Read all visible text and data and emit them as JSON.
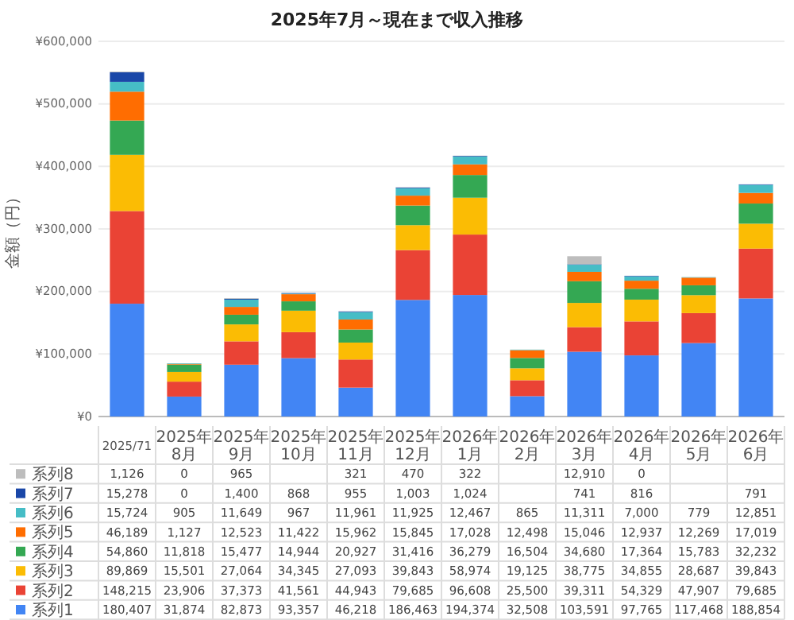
{
  "chart_data": {
    "type": "bar",
    "stacked": true,
    "title": "2025年7月～現在まで収入推移",
    "ylabel": "金額（円）",
    "categories": [
      "2025/71",
      "2025年8月",
      "2025年9月",
      "2025年10月",
      "2025年11月",
      "2025年12月",
      "2026年1月",
      "2026年2月",
      "2026年3月",
      "2026年4月",
      "2026年5月",
      "2026年6月"
    ],
    "series": [
      {
        "name": "系列1",
        "color": "#4285f4",
        "values": [
          180407,
          31874,
          82873,
          93357,
          46218,
          186463,
          194374,
          32508,
          103591,
          97765,
          117468,
          188854
        ],
        "value_labels": [
          "180,407",
          "31,874",
          "82,873",
          "93,357",
          "46,218",
          "186,463",
          "194,374",
          "32,508",
          "103,591",
          "97,765",
          "117,468",
          "188,854"
        ]
      },
      {
        "name": "系列2",
        "color": "#ea4335",
        "values": [
          148215,
          23906,
          37373,
          41561,
          44943,
          79685,
          96608,
          25500,
          39311,
          54329,
          47907,
          79685
        ],
        "value_labels": [
          "148,215",
          "23,906",
          "37,373",
          "41,561",
          "44,943",
          "79,685",
          "96,608",
          "25,500",
          "39,311",
          "54,329",
          "47,907",
          "79,685"
        ]
      },
      {
        "name": "系列3",
        "color": "#fbbc04",
        "values": [
          89869,
          15501,
          27064,
          34345,
          27093,
          39843,
          58974,
          19125,
          38775,
          34855,
          28687,
          39843
        ],
        "value_labels": [
          "89,869",
          "15,501",
          "27,064",
          "34,345",
          "27,093",
          "39,843",
          "58,974",
          "19,125",
          "38,775",
          "34,855",
          "28,687",
          "39,843"
        ]
      },
      {
        "name": "系列4",
        "color": "#34a853",
        "values": [
          54860,
          11818,
          15477,
          14944,
          20927,
          31416,
          36279,
          16504,
          34680,
          17364,
          15783,
          32232
        ],
        "value_labels": [
          "54,860",
          "11,818",
          "15,477",
          "14,944",
          "20,927",
          "31,416",
          "36,279",
          "16,504",
          "34,680",
          "17,364",
          "15,783",
          "32,232"
        ]
      },
      {
        "name": "系列5",
        "color": "#ff6d01",
        "values": [
          46189,
          1127,
          12523,
          11422,
          15962,
          15845,
          17028,
          12498,
          15046,
          12937,
          12269,
          17019
        ],
        "value_labels": [
          "46,189",
          "1,127",
          "12,523",
          "11,422",
          "15,962",
          "15,845",
          "17,028",
          "12,498",
          "15,046",
          "12,937",
          "12,269",
          "17,019"
        ]
      },
      {
        "name": "系列6",
        "color": "#46bdc6",
        "values": [
          15724,
          905,
          11649,
          967,
          11961,
          11925,
          12467,
          865,
          11311,
          7000,
          779,
          12851
        ],
        "value_labels": [
          "15,724",
          "905",
          "11,649",
          "967",
          "11,961",
          "11,925",
          "12,467",
          "865",
          "11,311",
          "7,000",
          "779",
          "12,851"
        ]
      },
      {
        "name": "系列7",
        "color": "#1a47a8",
        "values": [
          15278,
          0,
          1400,
          868,
          955,
          1003,
          1024,
          null,
          741,
          816,
          null,
          791
        ],
        "value_labels": [
          "15,278",
          "0",
          "1,400",
          "868",
          "955",
          "1,003",
          "1,024",
          null,
          "741",
          "816",
          null,
          "791"
        ]
      },
      {
        "name": "系列8",
        "color": "#bdbdbd",
        "values": [
          1126,
          0,
          965,
          null,
          321,
          470,
          322,
          null,
          12910,
          0,
          null,
          null
        ],
        "value_labels": [
          "1,126",
          "0",
          "965",
          null,
          "321",
          "470",
          "322",
          null,
          "12,910",
          "0",
          null,
          null
        ]
      }
    ],
    "ylim": [
      0,
      600000
    ],
    "yticks": [
      {
        "value": 0,
        "label": "¥0"
      },
      {
        "value": 100000,
        "label": "¥100,000"
      },
      {
        "value": 200000,
        "label": "¥200,000"
      },
      {
        "value": 300000,
        "label": "¥300,000"
      },
      {
        "value": 400000,
        "label": "¥400,000"
      },
      {
        "value": 500000,
        "label": "¥500,000"
      },
      {
        "value": 600000,
        "label": "¥600,000"
      }
    ],
    "grid": "y",
    "legend": "bottom"
  }
}
